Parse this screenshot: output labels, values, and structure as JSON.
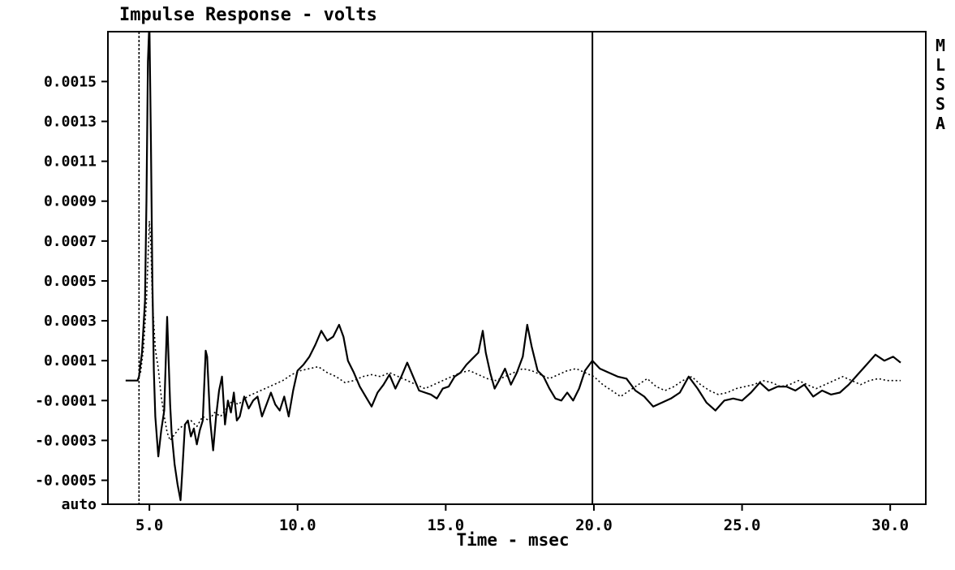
{
  "chart_data": {
    "type": "line",
    "title": "Impulse Response - volts",
    "xlabel": "Time - msec",
    "ylabel": "",
    "side_label": [
      "M",
      "L",
      "S",
      "S",
      "A"
    ],
    "xlim": [
      3.6,
      31.2
    ],
    "ylim": [
      -0.00062,
      0.00175
    ],
    "x_ticks": [
      5.0,
      10.0,
      15.0,
      20.0,
      25.0,
      30.0
    ],
    "x_tick_labels": [
      "5.0",
      "10.0",
      "15.0",
      "20.0",
      "25.0",
      "30.0"
    ],
    "y_ticks": [
      0.0015,
      0.0013,
      0.0011,
      0.0009,
      0.0007,
      0.0005,
      0.0003,
      0.0001,
      -0.0001,
      -0.0003,
      -0.0005,
      -0.00062
    ],
    "y_tick_labels": [
      "0.0015",
      "0.0013",
      "0.0011",
      "0.0009",
      "0.0007",
      "0.0005",
      "0.0003",
      "0.0001",
      "-0.0001",
      "-0.0003",
      "-0.0005",
      "auto"
    ],
    "markers": [
      {
        "x": 4.65,
        "style": "dotted"
      },
      {
        "x": 19.95,
        "style": "solid"
      }
    ],
    "grid": false,
    "series": [
      {
        "style": "solid",
        "x": [
          4.2,
          4.6,
          4.65,
          4.75,
          4.85,
          4.9,
          4.95,
          5.0,
          5.05,
          5.1,
          5.15,
          5.2,
          5.3,
          5.4,
          5.5,
          5.6,
          5.7,
          5.75,
          5.85,
          5.95,
          6.05,
          6.1,
          6.2,
          6.3,
          6.4,
          6.5,
          6.6,
          6.7,
          6.8,
          6.9,
          6.95,
          7.05,
          7.15,
          7.25,
          7.35,
          7.45,
          7.55,
          7.65,
          7.75,
          7.85,
          7.95,
          8.05,
          8.2,
          8.35,
          8.5,
          8.65,
          8.8,
          8.95,
          9.1,
          9.25,
          9.4,
          9.55,
          9.7,
          9.85,
          10.0,
          10.2,
          10.4,
          10.6,
          10.8,
          11.0,
          11.2,
          11.4,
          11.55,
          11.7,
          11.9,
          12.1,
          12.3,
          12.5,
          12.7,
          12.9,
          13.1,
          13.3,
          13.5,
          13.7,
          13.9,
          14.1,
          14.3,
          14.5,
          14.7,
          14.9,
          15.1,
          15.3,
          15.5,
          15.7,
          15.9,
          16.1,
          16.25,
          16.35,
          16.5,
          16.65,
          16.8,
          17.0,
          17.2,
          17.4,
          17.6,
          17.75,
          17.9,
          18.1,
          18.3,
          18.5,
          18.7,
          18.9,
          19.1,
          19.3,
          19.5,
          19.7,
          19.95,
          20.2,
          20.5,
          20.8,
          21.1,
          21.4,
          21.7,
          22.0,
          22.3,
          22.6,
          22.9,
          23.2,
          23.5,
          23.8,
          24.1,
          24.4,
          24.7,
          25.0,
          25.3,
          25.6,
          25.9,
          26.2,
          26.5,
          26.8,
          27.1,
          27.4,
          27.7,
          28.0,
          28.3,
          28.6,
          28.9,
          29.2,
          29.5,
          29.8,
          30.1,
          30.35
        ],
        "values": [
          0.0,
          0.0,
          2e-05,
          0.00014,
          0.0004,
          0.0009,
          0.0016,
          0.0018,
          0.0012,
          0.0005,
          5e-05,
          -0.00018,
          -0.00038,
          -0.00025,
          -0.00015,
          0.00032,
          -0.00012,
          -0.00026,
          -0.00042,
          -0.00052,
          -0.0006,
          -0.00048,
          -0.00022,
          -0.0002,
          -0.00028,
          -0.00024,
          -0.00032,
          -0.00025,
          -0.0002,
          0.00015,
          0.00012,
          -0.0002,
          -0.00035,
          -0.00018,
          -5e-05,
          2e-05,
          -0.00022,
          -0.0001,
          -0.00016,
          -6e-05,
          -0.0002,
          -0.00018,
          -8e-05,
          -0.00014,
          -0.0001,
          -8e-05,
          -0.00018,
          -0.00012,
          -6e-05,
          -0.00012,
          -0.00015,
          -8e-05,
          -0.00018,
          -5e-05,
          5e-05,
          8e-05,
          0.00012,
          0.00018,
          0.00025,
          0.0002,
          0.00022,
          0.00028,
          0.00022,
          0.0001,
          4e-05,
          -3e-05,
          -8e-05,
          -0.00013,
          -6e-05,
          -2e-05,
          3e-05,
          -4e-05,
          2e-05,
          9e-05,
          2e-05,
          -5e-05,
          -6e-05,
          -7e-05,
          -9e-05,
          -4e-05,
          -3e-05,
          2e-05,
          4e-05,
          8e-05,
          0.00011,
          0.00014,
          0.00025,
          0.00014,
          4e-05,
          -4e-05,
          0.0,
          6e-05,
          -2e-05,
          4e-05,
          0.00012,
          0.00028,
          0.00017,
          5e-05,
          2e-05,
          -4e-05,
          -9e-05,
          -0.0001,
          -6e-05,
          -0.0001,
          -4e-05,
          5e-05,
          0.0001,
          6e-05,
          4e-05,
          2e-05,
          1e-05,
          -5e-05,
          -8e-05,
          -0.00013,
          -0.00011,
          -9e-05,
          -6e-05,
          2e-05,
          -4e-05,
          -0.00011,
          -0.00015,
          -0.0001,
          -9e-05,
          -0.0001,
          -6e-05,
          -1e-05,
          -5e-05,
          -3e-05,
          -3e-05,
          -5e-05,
          -2e-05,
          -8e-05,
          -5e-05,
          -7e-05,
          -6e-05,
          -2e-05,
          3e-05,
          8e-05,
          0.00013,
          0.0001,
          0.00012,
          9e-05
        ]
      },
      {
        "style": "dotted",
        "x": [
          4.2,
          4.6,
          4.7,
          4.8,
          4.9,
          5.0,
          5.05,
          5.1,
          5.2,
          5.3,
          5.4,
          5.5,
          5.6,
          5.7,
          5.8,
          5.9,
          6.0,
          6.2,
          6.4,
          6.6,
          6.8,
          7.0,
          7.2,
          7.4,
          7.6,
          7.8,
          8.0,
          8.3,
          8.6,
          8.9,
          9.2,
          9.5,
          9.8,
          10.1,
          10.4,
          10.7,
          11.0,
          11.3,
          11.6,
          11.9,
          12.2,
          12.5,
          12.8,
          13.1,
          13.4,
          13.7,
          14.0,
          14.3,
          14.6,
          14.9,
          15.2,
          15.5,
          15.8,
          16.1,
          16.4,
          16.7,
          17.0,
          17.3,
          17.6,
          17.9,
          18.2,
          18.5,
          18.8,
          19.1,
          19.4,
          19.7,
          20.0,
          20.3,
          20.6,
          20.9,
          21.2,
          21.5,
          21.8,
          22.1,
          22.4,
          22.7,
          23.0,
          23.3,
          23.6,
          23.9,
          24.2,
          24.5,
          24.8,
          25.1,
          25.4,
          25.7,
          26.0,
          26.3,
          26.6,
          26.9,
          27.2,
          27.5,
          27.8,
          28.1,
          28.4,
          28.7,
          29.0,
          29.3,
          29.6,
          29.9,
          30.35
        ],
        "values": [
          0.0,
          0.0,
          4e-05,
          0.00016,
          0.0004,
          0.0008,
          0.00068,
          0.0004,
          0.00016,
          6e-05,
          -8e-05,
          -0.00018,
          -0.00026,
          -0.0003,
          -0.00028,
          -0.00026,
          -0.00024,
          -0.00022,
          -0.0002,
          -0.00023,
          -0.00018,
          -0.0002,
          -0.00016,
          -0.00018,
          -0.00014,
          -0.0001,
          -0.00012,
          -8e-05,
          -6e-05,
          -4e-05,
          -2e-05,
          0.0,
          3e-05,
          5e-05,
          6e-05,
          7e-05,
          4e-05,
          2e-05,
          -1e-05,
          0.0,
          2e-05,
          3e-05,
          2e-05,
          4e-05,
          2e-05,
          0.0,
          -2e-05,
          -4e-05,
          -2e-05,
          0.0,
          2e-05,
          4e-05,
          5e-05,
          3e-05,
          1e-05,
          0.0,
          2e-05,
          4e-05,
          6e-05,
          5e-05,
          3e-05,
          1e-05,
          3e-05,
          5e-05,
          6e-05,
          4e-05,
          2e-05,
          -2e-05,
          -5e-05,
          -8e-05,
          -5e-05,
          -2e-05,
          1e-05,
          -3e-05,
          -5e-05,
          -3e-05,
          0.0,
          2e-05,
          -2e-05,
          -5e-05,
          -7e-05,
          -6e-05,
          -4e-05,
          -3e-05,
          -2e-05,
          0.0,
          -1e-05,
          -3e-05,
          -2e-05,
          0.0,
          -2e-05,
          -4e-05,
          -2e-05,
          0.0,
          2e-05,
          0.0,
          -2e-05,
          0.0,
          1e-05,
          0.0,
          0.0
        ]
      }
    ]
  }
}
